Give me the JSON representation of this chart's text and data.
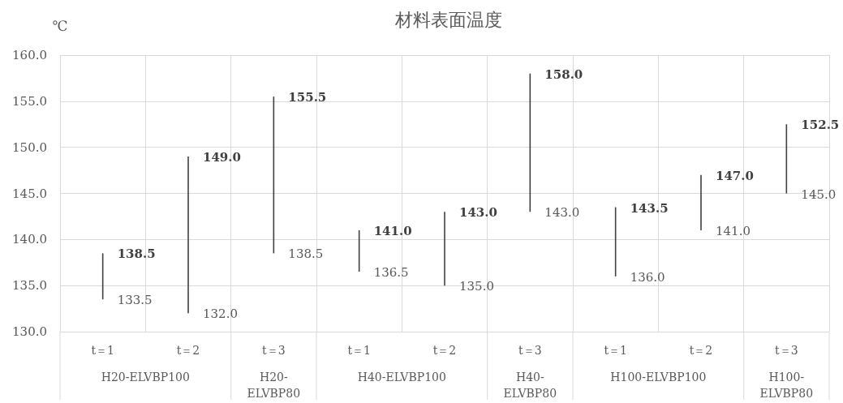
{
  "chart_data": {
    "type": "bar",
    "title": "材料表面温度",
    "ylabel": "℃",
    "categories": [
      "t＝1",
      "t＝2",
      "t＝3",
      "t＝1",
      "t＝2",
      "t＝3",
      "t＝1",
      "t＝2",
      "t＝3"
    ],
    "base": [
      133.5,
      132.0,
      138.5,
      136.5,
      135.0,
      143.0,
      136.0,
      141.0,
      145.0
    ],
    "values": [
      5.0,
      17.0,
      17.0,
      4.5,
      8.0,
      15.0,
      7.5,
      6.0,
      7.5
    ],
    "color": "#404040",
    "ylim": [
      130,
      160
    ],
    "yticks": [
      {
        "value": 130,
        "label": "130.0"
      },
      {
        "value": 135,
        "label": "135.0"
      },
      {
        "value": 140,
        "label": "140.0"
      },
      {
        "value": 145,
        "label": "145.0"
      },
      {
        "value": 150,
        "label": "150.0"
      },
      {
        "value": 155,
        "label": "155.0"
      },
      {
        "value": 160,
        "label": "160.0"
      }
    ],
    "grid": true,
    "annotations": [
      "138.5",
      "133.5",
      "149.0",
      "132.0",
      "155.5",
      "138.5",
      "141.0",
      "136.5",
      "143.0",
      "135.0",
      "158.0",
      "143.0",
      "143.5",
      "136.0",
      "147.0",
      "141.0",
      "152.5",
      "145.0",
      "H20-ELVBP100",
      "H20-ELVBP80",
      "H40-ELVBP100",
      "H40-ELVBP80",
      "H100-ELVBP100",
      "H100-ELVBP80"
    ]
  }
}
